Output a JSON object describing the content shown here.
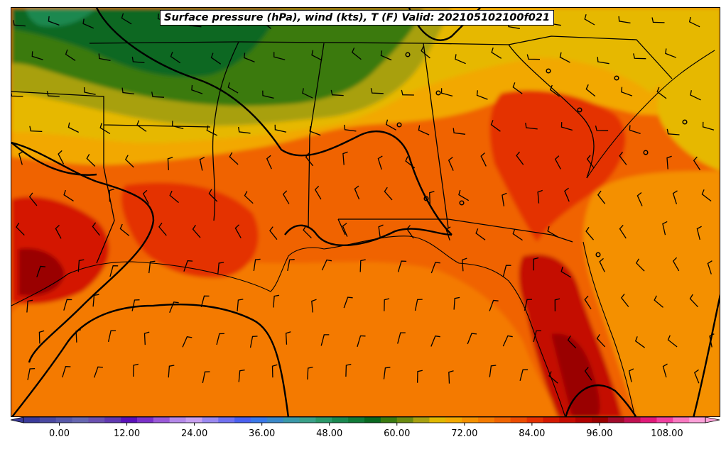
{
  "title": "Surface pressure (hPa), wind (kts), T (F) Valid: 202105102100f021",
  "colorbar": {
    "min": -6,
    "max": 120,
    "step": 3,
    "tick_labels": [
      "0.00",
      "12.00",
      "24.00",
      "36.00",
      "48.00",
      "60.00",
      "72.00",
      "84.00",
      "96.00",
      "108.00"
    ],
    "tick_values": [
      0,
      12,
      24,
      36,
      48,
      60,
      72,
      84,
      96,
      108
    ],
    "colors": [
      "#3a3a9a",
      "#4a48a0",
      "#5858a8",
      "#6666b0",
      "#6a50b0",
      "#6038b0",
      "#5a10b8",
      "#7a30c8",
      "#9a58d8",
      "#b488e8",
      "#c8a0f0",
      "#9a88f0",
      "#7070f0",
      "#4a60f0",
      "#3a78e8",
      "#3a88c8",
      "#3a98a8",
      "#3aa088",
      "#2a9868",
      "#1a8850",
      "#107a38",
      "#086820",
      "#3a7a10",
      "#6a8a10",
      "#a8a010",
      "#e0b800",
      "#f2a800",
      "#f49000",
      "#f47a00",
      "#f06400",
      "#ec4c00",
      "#e43000",
      "#d41800",
      "#c40a00",
      "#b00000",
      "#9a0000",
      "#a00a2a",
      "#c01050",
      "#e01878",
      "#f040a0",
      "#f878c0",
      "#fca0d8"
    ]
  }
}
